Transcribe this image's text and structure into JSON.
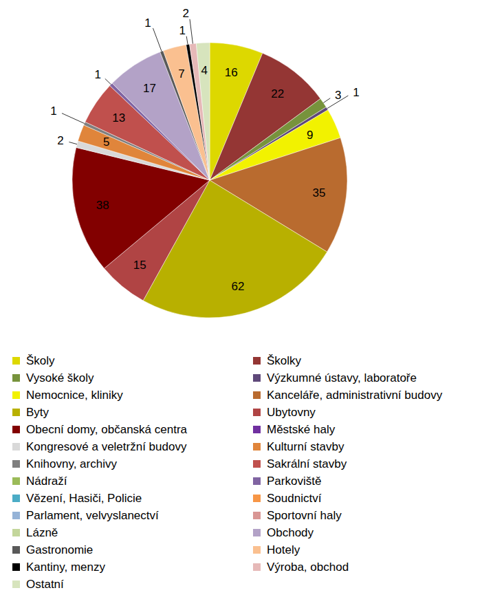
{
  "chart_data": {
    "type": "pie",
    "categories": [
      "Školy",
      "Školky",
      "Vysoké školy",
      "Výzkumné ústavy, laboratoře",
      "Nemocnice, kliniky",
      "Kanceláře, administrativní budovy",
      "Byty",
      "Ubytovny",
      "Obecní domy, občanská centra",
      "Městské haly",
      "Kongresové a veletržní budovy",
      "Kulturní stavby",
      "Knihovny, archivy",
      "Sakrální stavby",
      "Nádraží",
      "Parkoviště",
      "Vězení, Hasiči, Policie",
      "Soudnictví",
      "Parlament, velvyslanectví",
      "Sportovní  haly",
      "Lázně",
      "Obchody",
      "Gastronomie",
      "Hotely",
      "Kantiny, menzy",
      "Výroba, obchod",
      "Ostatní"
    ],
    "values": [
      16,
      22,
      3,
      1,
      9,
      35,
      62,
      15,
      38,
      0,
      2,
      5,
      1,
      13,
      0,
      1,
      0,
      0,
      0,
      0,
      0,
      17,
      1,
      7,
      1,
      2,
      4
    ],
    "colors": [
      "#DDD800",
      "#943634",
      "#77933C",
      "#5F497A",
      "#F2F200",
      "#B96B2F",
      "#B8B000",
      "#B04444",
      "#820000",
      "#7030A0",
      "#D9D9D9",
      "#E0853B",
      "#7F7F7F",
      "#C0504D",
      "#9BBB59",
      "#8064A2",
      "#4BACC6",
      "#F79646",
      "#95B3D7",
      "#D99694",
      "#C3D69B",
      "#B3A2C7",
      "#595959",
      "#FAC090",
      "#000000",
      "#E6B9B8",
      "#D7E4BD"
    ],
    "data_labels": true,
    "legend": "bottom"
  }
}
